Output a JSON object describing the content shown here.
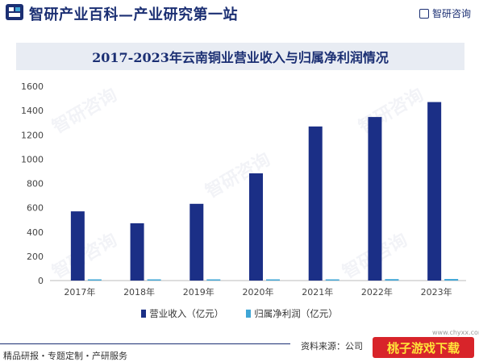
{
  "header": {
    "site_title": "智研产业百科—产业研究第一站",
    "brand": "智研咨询"
  },
  "chart_data": {
    "type": "bar",
    "title": "2017-2023年云南铜业营业收入与归属净利润情况",
    "categories": [
      "2017年",
      "2018年",
      "2019年",
      "2020年",
      "2021年",
      "2022年",
      "2023年"
    ],
    "series": [
      {
        "name": "营业收入（亿元）",
        "color": "#1b2f86",
        "values": [
          570,
          472,
          632,
          883,
          1269,
          1347,
          1470
        ]
      },
      {
        "name": "归属净利润（亿元）",
        "color": "#3fa6d6",
        "values": [
          3,
          2,
          3,
          3,
          7,
          12,
          13
        ]
      }
    ],
    "yticks": [
      0,
      200,
      400,
      600,
      800,
      1000,
      1200,
      1400,
      1600
    ],
    "ylim": [
      0,
      1600
    ],
    "grid": false,
    "legend_position": "bottom"
  },
  "footer": {
    "left_text": "精品研报・专题定制・产研服务",
    "source_text": "资料来源：公司",
    "badge": "桃子游戏下载",
    "url": "www.chyxx.com"
  },
  "watermark": "智研咨询"
}
